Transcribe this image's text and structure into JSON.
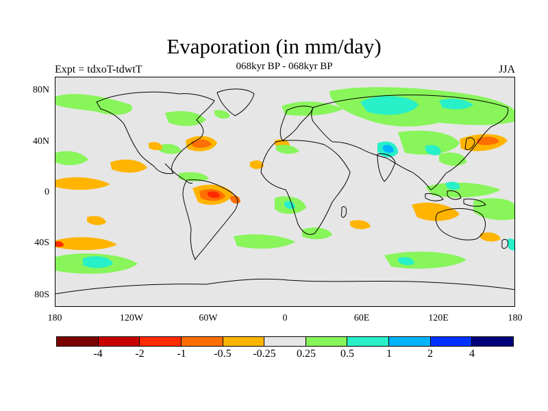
{
  "plot": {
    "title": "Evaporation (in mm/day)",
    "subtitle": "068kyr BP - 068kyr BP",
    "left_label": "Expt = tdxoT-tdwtT",
    "right_label": "JJA"
  },
  "chart_data": {
    "type": "heatmap",
    "title": "Evaporation (in mm/day)",
    "subtitle": "068kyr BP - 068kyr BP",
    "projection": "cylindrical equidistant",
    "x_range": [
      -180,
      180
    ],
    "y_range": [
      -90,
      90
    ],
    "x_ticks": [
      "180",
      "120W",
      "60W",
      "0",
      "60E",
      "120E",
      "180"
    ],
    "y_ticks": [
      "80N",
      "40N",
      "0",
      "40S",
      "80S"
    ],
    "colorbar": {
      "levels": [
        "-4",
        "-2",
        "-1",
        "-0.5",
        "-0.25",
        "0.25",
        "0.5",
        "1",
        "2",
        "4"
      ],
      "colors": [
        "#7a0000",
        "#c80000",
        "#ff2a00",
        "#ff6e00",
        "#ffb400",
        "#e6e6e6",
        "#88f55a",
        "#28f0c8",
        "#00b4ff",
        "#0032ff",
        "#00007a"
      ]
    },
    "background_color": "#e6e6e6"
  }
}
